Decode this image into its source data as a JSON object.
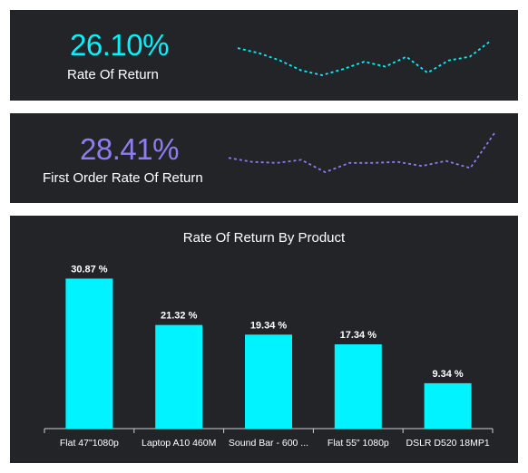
{
  "colors": {
    "background": "#232428",
    "cyan": "#00f3ff",
    "purple": "#8f7cf0",
    "text": "#ffffff"
  },
  "kpis": [
    {
      "value": "26.10%",
      "label": "Rate Of Return",
      "color": "#00f3ff",
      "trend": [
        68,
        64,
        58,
        50,
        46,
        51,
        57,
        53,
        61,
        48,
        58,
        61,
        74
      ]
    },
    {
      "value": "28.41%",
      "label": "First Order Rate Of Return",
      "color": "#8f7cf0",
      "trend": [
        66,
        62,
        61,
        64,
        52,
        61,
        61,
        62,
        58,
        63,
        56,
        90
      ]
    }
  ],
  "chart_data": {
    "type": "bar",
    "title": "Rate Of Return By Product",
    "categories": [
      "Flat 47\"1080p",
      "Laptop A10 460M",
      "Sound Bar - 600 ...",
      "Flat 55\" 1080p",
      "DSLR D520 18MP1"
    ],
    "values": [
      30.87,
      21.32,
      19.34,
      17.34,
      9.34
    ],
    "data_labels": [
      "30.87 %",
      "21.32 %",
      "19.34 %",
      "17.34 %",
      "9.34 %"
    ],
    "ylim": [
      0,
      33
    ],
    "bar_color": "#00f3ff",
    "grid": false,
    "legend": "none"
  }
}
